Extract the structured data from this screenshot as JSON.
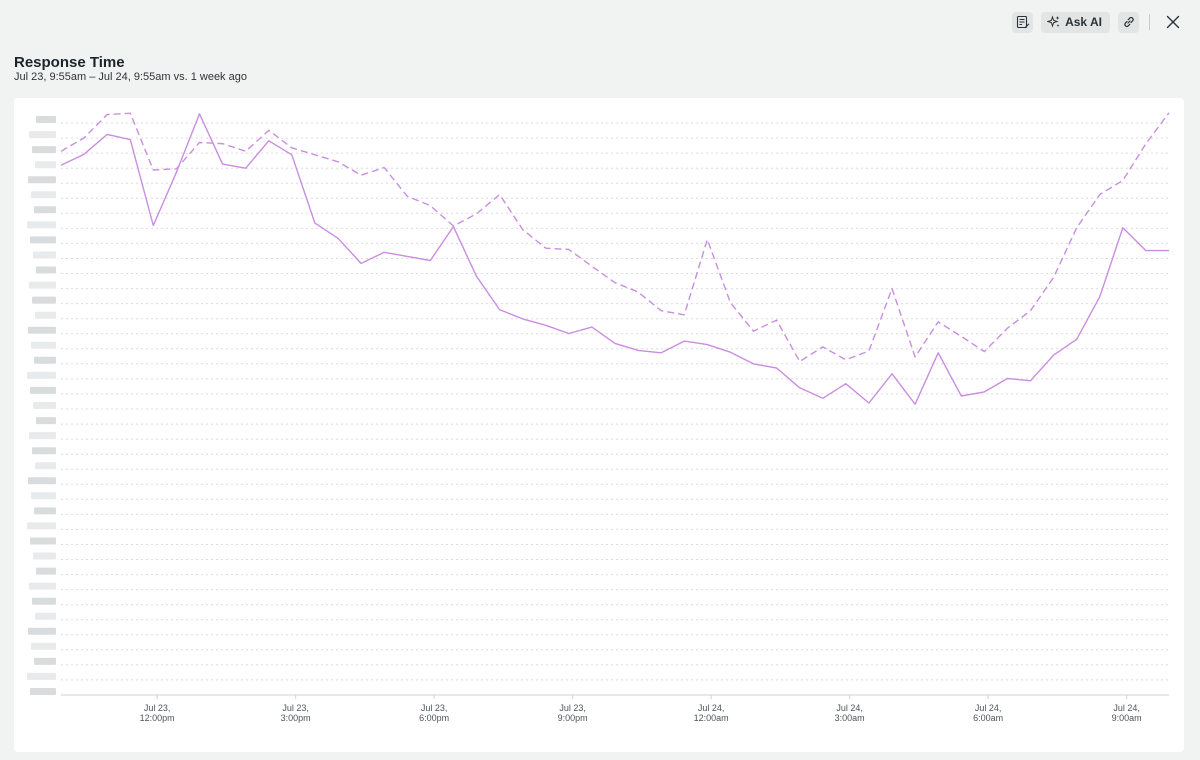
{
  "toolbar": {
    "notes_icon": "notes-edit-icon",
    "ask_ai_icon": "sparkle-icon",
    "ask_ai_label": "Ask AI",
    "link_icon": "link-icon",
    "close_icon": "close-icon"
  },
  "header": {
    "title": "Response Time",
    "subtitle": "Jul 23, 9:55am – Jul 24, 9:55am vs. 1 week ago"
  },
  "colors": {
    "series_current": "#c98ee0",
    "series_previous": "#c98ee0",
    "grid": "#dcdcdc",
    "axis": "#cfd2d3"
  },
  "chart_data": {
    "type": "line",
    "title": "Response Time",
    "subtitle": "Jul 23, 9:55am – Jul 24, 9:55am vs. 1 week ago",
    "xlabel": "",
    "ylabel": "",
    "y_tick_labels_visible": false,
    "grid": true,
    "x_range": [
      "Jul 23, 9:55am",
      "Jul 24, 9:55am"
    ],
    "ylim": [
      0,
      100
    ],
    "x_ticks": [
      {
        "time": "Jul 23, 12:00pm",
        "line1": "Jul 23,",
        "line2": "12:00pm"
      },
      {
        "time": "Jul 23, 3:00pm",
        "line1": "Jul 23,",
        "line2": "3:00pm"
      },
      {
        "time": "Jul 23, 6:00pm",
        "line1": "Jul 23,",
        "line2": "6:00pm"
      },
      {
        "time": "Jul 23, 9:00pm",
        "line1": "Jul 23,",
        "line2": "9:00pm"
      },
      {
        "time": "Jul 24, 12:00am",
        "line1": "Jul 24,",
        "line2": "12:00am"
      },
      {
        "time": "Jul 24, 3:00am",
        "line1": "Jul 24,",
        "line2": "3:00am"
      },
      {
        "time": "Jul 24, 6:00am",
        "line1": "Jul 24,",
        "line2": "6:00am"
      },
      {
        "time": "Jul 24, 9:00am",
        "line1": "Jul 24,",
        "line2": "9:00am"
      }
    ],
    "x": [
      "Jul 23, 9:55am",
      "Jul 23, 10:25am",
      "Jul 23, 10:55am",
      "Jul 23, 11:25am",
      "Jul 23, 11:55am",
      "Jul 23, 12:25pm",
      "Jul 23, 12:55pm",
      "Jul 23, 1:25pm",
      "Jul 23, 1:55pm",
      "Jul 23, 2:25pm",
      "Jul 23, 2:55pm",
      "Jul 23, 3:25pm",
      "Jul 23, 3:55pm",
      "Jul 23, 4:25pm",
      "Jul 23, 4:55pm",
      "Jul 23, 5:25pm",
      "Jul 23, 5:55pm",
      "Jul 23, 6:25pm",
      "Jul 23, 6:55pm",
      "Jul 23, 7:25pm",
      "Jul 23, 7:55pm",
      "Jul 23, 8:25pm",
      "Jul 23, 8:55pm",
      "Jul 23, 9:25pm",
      "Jul 23, 9:55pm",
      "Jul 23, 10:25pm",
      "Jul 23, 10:55pm",
      "Jul 23, 11:25pm",
      "Jul 23, 11:55pm",
      "Jul 24, 12:25am",
      "Jul 24, 12:55am",
      "Jul 24, 1:25am",
      "Jul 24, 1:55am",
      "Jul 24, 2:25am",
      "Jul 24, 2:55am",
      "Jul 24, 3:25am",
      "Jul 24, 3:55am",
      "Jul 24, 4:25am",
      "Jul 24, 4:55am",
      "Jul 24, 5:25am",
      "Jul 24, 5:55am",
      "Jul 24, 6:25am",
      "Jul 24, 6:55am",
      "Jul 24, 7:25am",
      "Jul 24, 7:55am",
      "Jul 24, 8:25am",
      "Jul 24, 8:55am",
      "Jul 24, 9:25am",
      "Jul 24, 9:55am"
    ],
    "series": [
      {
        "style": "solid",
        "values": [
          90.7,
          92.6,
          96.0,
          95.1,
          80.4,
          89.5,
          99.5,
          90.9,
          90.2,
          94.9,
          92.5,
          80.8,
          78.2,
          73.9,
          75.8,
          75.1,
          74.4,
          80.2,
          71.7,
          66.0,
          64.4,
          63.3,
          61.9,
          63.0,
          60.2,
          59.0,
          58.6,
          60.6,
          60.0,
          58.7,
          56.7,
          56.0,
          52.6,
          50.8,
          53.3,
          50.0,
          55.0,
          49.8,
          58.6,
          51.2,
          51.9,
          54.2,
          53.8,
          58.2,
          60.9,
          68.2,
          80.0,
          76.1,
          76.1
        ]
      },
      {
        "style": "dashed",
        "values": [
          93.1,
          95.4,
          99.4,
          99.6,
          89.9,
          90.1,
          94.6,
          94.4,
          93.1,
          96.7,
          93.7,
          92.5,
          91.3,
          89.0,
          90.3,
          85.4,
          83.8,
          80.3,
          82.4,
          85.7,
          79.7,
          76.5,
          76.3,
          73.4,
          70.6,
          69.0,
          65.8,
          65.1,
          78.0,
          67.2,
          62.3,
          64.2,
          57.1,
          59.6,
          57.4,
          58.9,
          69.6,
          57.9,
          63.9,
          61.4,
          58.8,
          62.8,
          65.8,
          71.5,
          80.0,
          85.7,
          88.1,
          94.4,
          99.7
        ]
      }
    ]
  }
}
